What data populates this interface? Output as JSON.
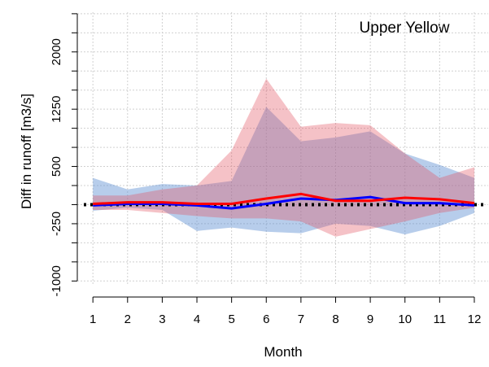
{
  "chart_data": {
    "type": "band-line",
    "title": "Upper Yellow",
    "x_label": "Month",
    "y_label": "Diff in runoff [m3/s]",
    "x": [
      1,
      2,
      3,
      4,
      5,
      6,
      7,
      8,
      9,
      10,
      11,
      12
    ],
    "xlim": [
      0.55,
      12.4
    ],
    "xticks": [
      1,
      2,
      3,
      4,
      5,
      6,
      7,
      8,
      9,
      10,
      11,
      12
    ],
    "ylim": [
      -1050,
      2520
    ],
    "yticks": [
      -1000,
      -250,
      500,
      1250,
      2000
    ],
    "minor_yticks": [
      -750,
      -500,
      0,
      250,
      750,
      1000,
      1500,
      1750,
      2250,
      2500
    ],
    "grid": true,
    "reference_line": 0,
    "series": [
      {
        "color": "#0000ff",
        "band_color": "rgba(95,145,210,0.45)",
        "values": [
          -10,
          10,
          10,
          -10,
          -50,
          10,
          80,
          60,
          100,
          20,
          20,
          -10
        ],
        "upper": [
          350,
          200,
          270,
          250,
          310,
          1280,
          830,
          880,
          960,
          670,
          520,
          350
        ],
        "lower": [
          -80,
          -40,
          -70,
          -345,
          -300,
          -355,
          -375,
          -250,
          -280,
          -390,
          -280,
          -110
        ]
      },
      {
        "color": "#ff0000",
        "band_color": "rgba(225,80,95,0.35)",
        "values": [
          10,
          30,
          30,
          10,
          10,
          80,
          140,
          50,
          50,
          90,
          70,
          20
        ],
        "upper": [
          120,
          120,
          200,
          250,
          710,
          1650,
          1020,
          1070,
          1040,
          670,
          350,
          490
        ],
        "lower": [
          -70,
          -70,
          -110,
          -150,
          -180,
          -180,
          -220,
          -420,
          -320,
          -220,
          -110,
          -40
        ]
      }
    ]
  }
}
